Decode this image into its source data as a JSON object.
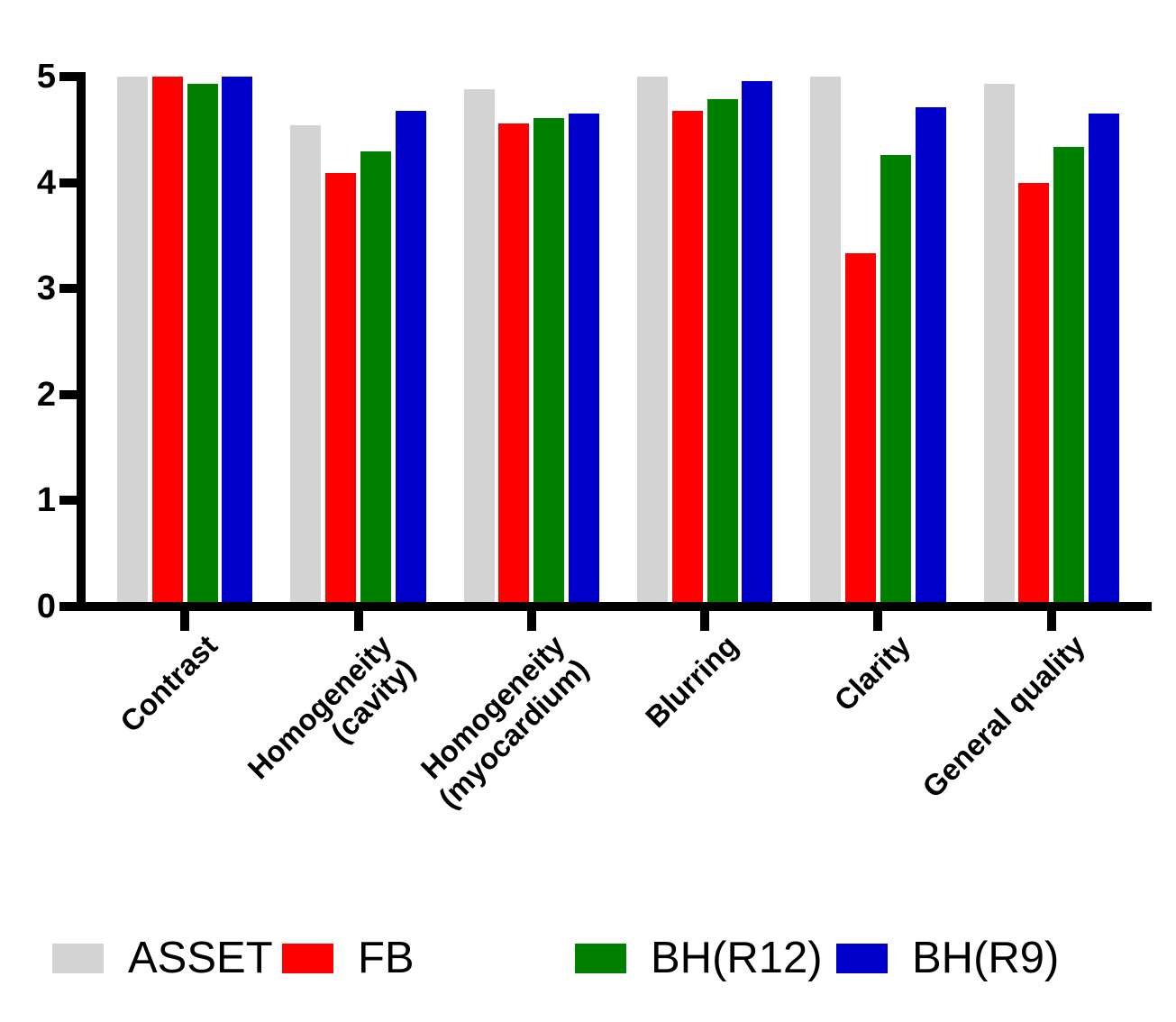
{
  "chart_data": {
    "type": "bar",
    "title": "",
    "xlabel": "",
    "ylabel": "",
    "ylim": [
      0,
      5
    ],
    "yticks": [
      0,
      1,
      2,
      3,
      4,
      5
    ],
    "grid": false,
    "legend_position": "bottom",
    "categories": [
      "Contrast",
      "Homogeneity\n(cavity)",
      "Homogeneity\n(myocardium)",
      "Blurring",
      "Clarity",
      "General quality"
    ],
    "series": [
      {
        "name": "ASSET",
        "color": "#d3d3d3",
        "values": [
          5.0,
          4.54,
          4.88,
          5.0,
          5.0,
          4.93
        ]
      },
      {
        "name": "FB",
        "color": "#ff0000",
        "values": [
          5.0,
          4.09,
          4.56,
          4.68,
          3.33,
          4.0
        ]
      },
      {
        "name": "BH(R12)",
        "color": "#008000",
        "values": [
          4.93,
          4.29,
          4.61,
          4.79,
          4.26,
          4.34
        ]
      },
      {
        "name": "BH(R9)",
        "color": "#0000cc",
        "values": [
          5.0,
          4.68,
          4.65,
          4.96,
          4.71,
          4.65
        ]
      }
    ]
  }
}
